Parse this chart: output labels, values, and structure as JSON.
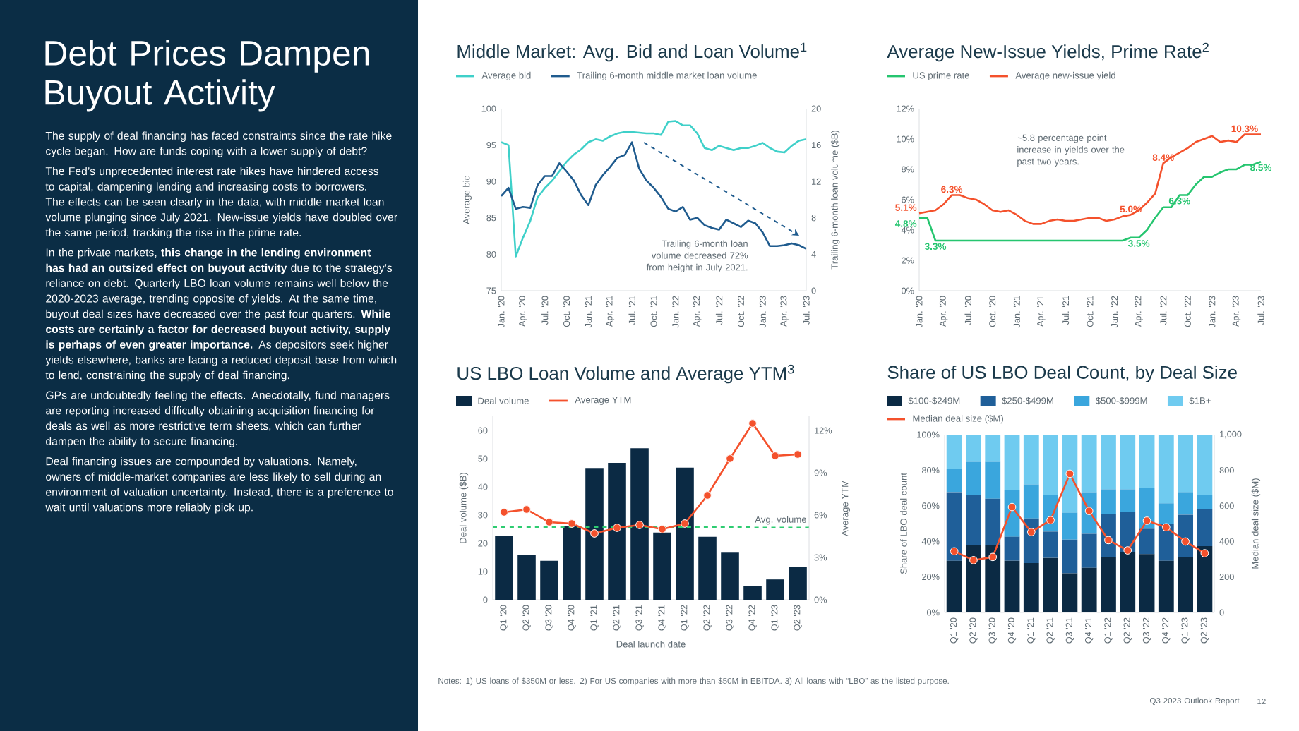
{
  "chart_data": [
    {
      "type": "other",
      "title": "Debt Prices Dampen Buyout Activity",
      "annotations": [
        "The supply of deal financing has faced constraints since the rate hike cycle began. How are funds coping with a lower supply of debt?",
        "The Fed’s unprecedented interest rate hikes have hindered access to capital, dampening lending and increasing costs to borrowers. The effects can be seen clearly in the data, with middle market loan volume plunging since July 2021. New-issue yields have doubled over the same period, tracking the rise in the prime rate.",
        "In the private markets, **this change in the lending environment has had an outsized effect on buyout activity** due to the strategy’s reliance on debt. Quarterly LBO loan volume remains well below the 2020-2023 average, trending opposite of yields. At the same time, buyout deal sizes have decreased over the past four quarters. **While costs are certainly a factor for decreased buyout activity, supply is perhaps of even greater importance.** As depositors seek higher yields elsewhere, banks are facing a reduced deposit base from which to lend, constraining the supply of deal financing.",
        "GPs are undoubtedly feeling the effects. Anecdotally, fund managers are reporting increased difficulty obtaining acquisition financing for deals as well as more restrictive term sheets, which can further dampen the ability to secure financing.",
        "Deal financing issues are compounded by valuations. Namely, owners of middle-market companies are less likely to sell during an environment of valuation uncertainty. Instead, there is a preference to wait until valuations more reliably pick up.",
        "Notes: 1) US loans of $350M or less. 2) For US companies with more than $50M in EBITDA. 3) All loans with “LBO” as the listed purpose.",
        "Q3 2023 Outlook Report",
        "12"
      ]
    },
    {
      "type": "line",
      "title": "Middle Market: Avg. Bid and Loan Volume$^{1}$",
      "ylabel": "Average bid",
      "y2label": "Trailing 6-month loan volume ($B)",
      "legend": "top",
      "x": [
        "2020-01",
        "2020-02",
        "2020-03",
        "2020-04",
        "2020-05",
        "2020-06",
        "2020-07",
        "2020-08",
        "2020-09",
        "2020-10",
        "2020-11",
        "2020-12",
        "2021-01",
        "2021-02",
        "2021-03",
        "2021-04",
        "2021-05",
        "2021-06",
        "2021-07",
        "2021-08",
        "2021-09",
        "2021-10",
        "2021-11",
        "2021-12",
        "2022-01",
        "2022-02",
        "2022-03",
        "2022-04",
        "2022-05",
        "2022-06",
        "2022-07",
        "2022-08",
        "2022-09",
        "2022-10",
        "2022-11",
        "2022-12",
        "2023-01",
        "2023-02",
        "2023-03",
        "2023-04",
        "2023-05",
        "2023-06",
        "2023-07"
      ],
      "xlim": [
        "2020-01",
        "2023-07"
      ],
      "xticks": [
        {
          "value": "2020-01",
          "label": "Jan. '20"
        },
        {
          "value": "2020-04",
          "label": "Apr. '20"
        },
        {
          "value": "2020-07",
          "label": "Jul. '20"
        },
        {
          "value": "2020-10",
          "label": "Oct. '20"
        },
        {
          "value": "2021-01",
          "label": "Jan. '21"
        },
        {
          "value": "2021-04",
          "label": "Apr. '21"
        },
        {
          "value": "2021-07",
          "label": "Jul. '21"
        },
        {
          "value": "2021-10",
          "label": "Oct. '21"
        },
        {
          "value": "2022-01",
          "label": "Jan. '22"
        },
        {
          "value": "2022-04",
          "label": "Apr. '22"
        },
        {
          "value": "2022-07",
          "label": "Jul. '22"
        },
        {
          "value": "2022-10",
          "label": "Oct. '22"
        },
        {
          "value": "2023-01",
          "label": "Jan. '23"
        },
        {
          "value": "2023-04",
          "label": "Apr. '23"
        },
        {
          "value": "2023-07",
          "label": "Jul. '23"
        }
      ],
      "ylim": [
        75,
        100
      ],
      "yticks": [
        75,
        80,
        85,
        90,
        95,
        100
      ],
      "y2lim": [
        0,
        20
      ],
      "y2ticks": [
        0,
        4,
        8,
        12,
        16,
        20
      ],
      "series": [
        {
          "name": "Average bid",
          "color": "#3fd0c9",
          "values": [
            95.4,
            95.0,
            79.7,
            82.3,
            84.6,
            87.8,
            89.1,
            90.1,
            91.4,
            92.7,
            93.7,
            94.4,
            95.4,
            95.8,
            95.6,
            96.2,
            96.6,
            96.8,
            96.8,
            96.7,
            96.6,
            96.6,
            96.4,
            98.2,
            98.3,
            97.7,
            97.7,
            96.6,
            94.6,
            94.3,
            94.9,
            94.6,
            94.3,
            94.6,
            94.6,
            94.9,
            95.3,
            94.6,
            94.1,
            94.0,
            94.9,
            95.6,
            95.8
          ]
        },
        {
          "name": "Trailing 6-month middle market loan volume",
          "axis": "y2",
          "color": "#1f5b8e",
          "values": [
            10.4,
            11.3,
            9.0,
            9.2,
            9.1,
            11.6,
            12.6,
            12.6,
            14.0,
            13.1,
            12.1,
            10.5,
            9.4,
            11.6,
            12.7,
            13.6,
            14.6,
            14.9,
            16.3,
            13.4,
            12.1,
            11.3,
            10.3,
            9.0,
            8.7,
            9.2,
            7.8,
            8.0,
            7.2,
            6.9,
            6.7,
            7.8,
            7.4,
            7.0,
            7.7,
            7.4,
            6.4,
            4.9,
            4.9,
            5.0,
            5.2,
            5.0,
            4.6
          ]
        }
      ],
      "annotations": [
        "Trailing 6-month loan volume decreased 72% from height in July 2021."
      ]
    },
    {
      "type": "line",
      "title": "Average New-Issue Yields, Prime Rate$^{2}$",
      "legend": "top",
      "x": [
        "2020-01",
        "2020-02",
        "2020-03",
        "2020-04",
        "2020-05",
        "2020-06",
        "2020-07",
        "2020-08",
        "2020-09",
        "2020-10",
        "2020-11",
        "2020-12",
        "2021-01",
        "2021-02",
        "2021-03",
        "2021-04",
        "2021-05",
        "2021-06",
        "2021-07",
        "2021-08",
        "2021-09",
        "2021-10",
        "2021-11",
        "2021-12",
        "2022-01",
        "2022-02",
        "2022-03",
        "2022-04",
        "2022-05",
        "2022-06",
        "2022-07",
        "2022-08",
        "2022-09",
        "2022-10",
        "2022-11",
        "2022-12",
        "2023-01",
        "2023-02",
        "2023-03",
        "2023-04",
        "2023-05",
        "2023-06",
        "2023-07"
      ],
      "xlim": [
        "2020-01",
        "2023-07"
      ],
      "xticks": [
        {
          "value": "2020-01",
          "label": "Jan. '20"
        },
        {
          "value": "2020-04",
          "label": "Apr. '20"
        },
        {
          "value": "2020-07",
          "label": "Jul. '20"
        },
        {
          "value": "2020-10",
          "label": "Oct. '20"
        },
        {
          "value": "2021-01",
          "label": "Jan. '21"
        },
        {
          "value": "2021-04",
          "label": "Apr. '21"
        },
        {
          "value": "2021-07",
          "label": "Jul. '21"
        },
        {
          "value": "2021-10",
          "label": "Oct. '21"
        },
        {
          "value": "2022-01",
          "label": "Jan. '22"
        },
        {
          "value": "2022-04",
          "label": "Apr. '22"
        },
        {
          "value": "2022-07",
          "label": "Jul. '22"
        },
        {
          "value": "2022-10",
          "label": "Oct. '22"
        },
        {
          "value": "2023-01",
          "label": "Jan. '23"
        },
        {
          "value": "2023-04",
          "label": "Apr. '23"
        },
        {
          "value": "2023-07",
          "label": "Jul. '23"
        }
      ],
      "ylim": [
        0,
        12
      ],
      "yticks": [
        {
          "value": 0,
          "label": "0%"
        },
        {
          "value": 2,
          "label": "2%"
        },
        {
          "value": 4,
          "label": "4%"
        },
        {
          "value": 6,
          "label": "6%"
        },
        {
          "value": 8,
          "label": "8%"
        },
        {
          "value": 10,
          "label": "10%"
        },
        {
          "value": 12,
          "label": "12%"
        }
      ],
      "series": [
        {
          "name": "US prime rate",
          "color": "#25c56f",
          "values": [
            4.8,
            4.8,
            3.3,
            3.3,
            3.3,
            3.3,
            3.3,
            3.3,
            3.3,
            3.3,
            3.3,
            3.3,
            3.3,
            3.3,
            3.3,
            3.3,
            3.3,
            3.3,
            3.3,
            3.3,
            3.3,
            3.3,
            3.3,
            3.3,
            3.3,
            3.3,
            3.5,
            3.5,
            4.0,
            4.8,
            5.5,
            5.5,
            6.3,
            6.3,
            7.0,
            7.5,
            7.5,
            7.8,
            8.0,
            8.0,
            8.3,
            8.3,
            8.5
          ],
          "value_labels": [
            "4.8%",
            null,
            "3.3%",
            null,
            null,
            null,
            null,
            null,
            null,
            null,
            null,
            null,
            null,
            null,
            null,
            null,
            null,
            null,
            null,
            null,
            null,
            null,
            null,
            null,
            null,
            null,
            null,
            "3.5%",
            null,
            null,
            null,
            null,
            "6.3%",
            null,
            null,
            null,
            null,
            null,
            null,
            null,
            null,
            null,
            "8.5%"
          ]
        },
        {
          "name": "Average new-issue yield",
          "color": "#f4512c",
          "values": [
            5.1,
            5.2,
            5.3,
            5.7,
            6.3,
            6.3,
            6.1,
            6.0,
            5.7,
            5.3,
            5.2,
            5.3,
            5.0,
            4.6,
            4.4,
            4.4,
            4.6,
            4.7,
            4.6,
            4.6,
            4.7,
            4.8,
            4.8,
            4.6,
            4.7,
            4.9,
            5.0,
            5.3,
            5.8,
            6.4,
            8.4,
            8.8,
            9.1,
            9.4,
            9.8,
            10.0,
            10.2,
            9.8,
            9.9,
            9.8,
            10.3,
            10.3,
            10.3
          ],
          "value_labels": [
            "5.1%",
            null,
            null,
            null,
            "6.3%",
            null,
            null,
            null,
            null,
            null,
            null,
            null,
            null,
            null,
            null,
            null,
            null,
            null,
            null,
            null,
            null,
            null,
            null,
            null,
            null,
            null,
            "5.0%",
            null,
            null,
            null,
            "8.4%",
            null,
            null,
            null,
            null,
            null,
            null,
            null,
            null,
            null,
            "10.3%",
            null,
            null
          ]
        }
      ],
      "annotations": [
        "~5.8 percentage point increase in yields over the past two years."
      ]
    },
    {
      "type": "bar",
      "title": "US LBO Loan Volume and Average YTM$^{3}$",
      "xlabel": "Deal launch date",
      "ylabel": "Deal volume ($B)",
      "y2label": "Average YTM",
      "legend": "top",
      "categories": [
        "Q1 '20",
        "Q2 '20",
        "Q3 '20",
        "Q4 '20",
        "Q1 '21",
        "Q2 '21",
        "Q3 '21",
        "Q4 '21",
        "Q1 '22",
        "Q2 '22",
        "Q3 '22",
        "Q4 '22",
        "Q1 '23",
        "Q2 '23"
      ],
      "ylim": [
        0,
        65
      ],
      "yticks": [
        0,
        10,
        20,
        30,
        40,
        50,
        60
      ],
      "y2lim": [
        0,
        13
      ],
      "y2ticks": [
        {
          "value": 0,
          "label": "0%"
        },
        {
          "value": 3,
          "label": "3%"
        },
        {
          "value": 6,
          "label": "6%"
        },
        {
          "value": 9,
          "label": "9%"
        },
        {
          "value": 12,
          "label": "12%"
        }
      ],
      "series": [
        {
          "name": "Deal volume",
          "color": "#0b2a44",
          "values": [
            22.5,
            15.8,
            13.8,
            26.2,
            46.7,
            48.5,
            53.7,
            23.8,
            46.8,
            22.3,
            16.7,
            4.8,
            7.2,
            11.7
          ]
        },
        {
          "name": "Average YTM",
          "type": "line",
          "axis": "y2",
          "marker": "circle",
          "color": "#f4512c",
          "values": [
            6.2,
            6.4,
            5.5,
            5.4,
            4.7,
            5.1,
            5.3,
            5.0,
            5.4,
            7.4,
            10.0,
            12.5,
            10.2,
            10.3
          ]
        }
      ],
      "ref_lines": [
        {
          "axis": "y",
          "value": 25.8,
          "label": "Avg. volume",
          "color": "#2ecc71",
          "line_style": "dashed"
        }
      ]
    },
    {
      "type": "bar",
      "title": "Share of US LBO Deal Count, by Deal Size",
      "ylabel": "Share of LBO deal count",
      "y2label": "Median deal size ($M)",
      "legend": "top",
      "stacked": true,
      "categories": [
        "Q1 '20",
        "Q2 '20",
        "Q3 '20",
        "Q4 '20",
        "Q1 '21",
        "Q2 '21",
        "Q3 '21",
        "Q4 '21",
        "Q1 '22",
        "Q2 '22",
        "Q3 '22",
        "Q4 '22",
        "Q1 '23",
        "Q2 '23"
      ],
      "ylim": [
        0,
        100
      ],
      "yticks": [
        {
          "value": 0,
          "label": "0%"
        },
        {
          "value": 20,
          "label": "20%"
        },
        {
          "value": 40,
          "label": "40%"
        },
        {
          "value": 60,
          "label": "60%"
        },
        {
          "value": 80,
          "label": "80%"
        },
        {
          "value": 100,
          "label": "100%"
        }
      ],
      "y2lim": [
        0,
        1000
      ],
      "y2ticks": [
        0,
        200,
        400,
        600,
        800,
        {
          "value": 1000,
          "label": "1,000"
        }
      ],
      "series": [
        {
          "name": "$100-$249M",
          "color": "#0b2a44",
          "values": [
            29.1,
            37.8,
            37.8,
            29.1,
            27.8,
            30.7,
            22.0,
            25.1,
            31.2,
            33.9,
            32.8,
            29.1,
            31.2,
            37.3
          ]
        },
        {
          "name": "$250-$499M",
          "color": "#1f5f99",
          "values": [
            38.6,
            28.3,
            26.2,
            13.5,
            25.1,
            14.8,
            19.0,
            19.1,
            24.1,
            22.7,
            14.3,
            20.6,
            23.8,
            20.9
          ]
        },
        {
          "name": "$500-$999M",
          "color": "#3aa6dd",
          "values": [
            13.0,
            18.6,
            20.7,
            26.2,
            19.1,
            20.6,
            15.1,
            23.5,
            14.0,
            12.7,
            22.7,
            11.7,
            12.7,
            7.9
          ]
        },
        {
          "name": "$1B+",
          "color": "#6fcbf0",
          "values": [
            19.3,
            15.3,
            15.3,
            31.2,
            28.0,
            33.9,
            43.9,
            32.3,
            30.7,
            30.7,
            30.2,
            38.6,
            32.3,
            33.9
          ]
        },
        {
          "name": "Median deal size ($M)",
          "type": "line",
          "axis": "y2",
          "marker": "circle",
          "color": "#f4512c",
          "values": [
            344,
            294,
            312,
            593,
            452,
            519,
            780,
            571,
            407,
            349,
            516,
            479,
            399,
            333
          ]
        }
      ]
    }
  ]
}
